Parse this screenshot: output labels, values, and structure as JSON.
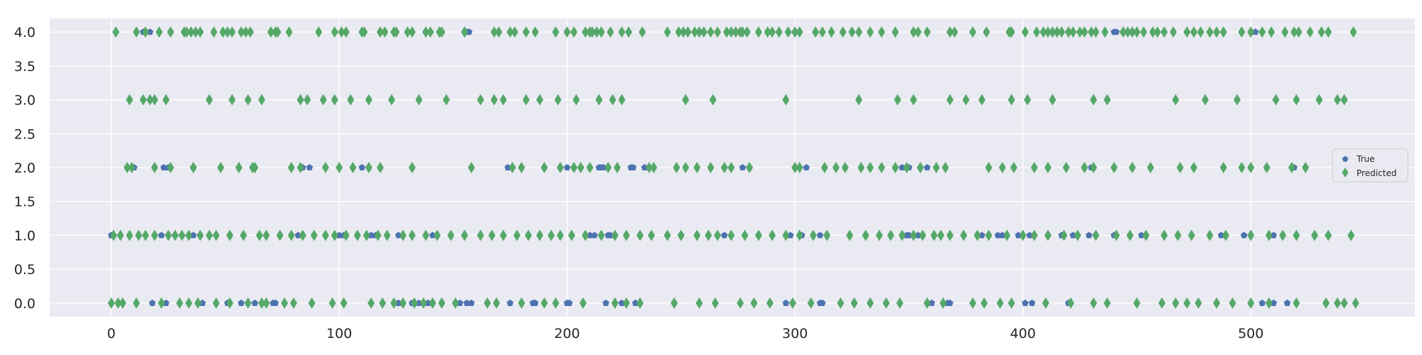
{
  "chart_data": {
    "type": "scatter",
    "title": "",
    "xlabel": "",
    "ylabel": "",
    "xlim": [
      -27,
      572
    ],
    "ylim": [
      -0.2,
      4.2
    ],
    "xticks": [
      0,
      100,
      200,
      300,
      400,
      500
    ],
    "yticks": [
      0.0,
      0.5,
      1.0,
      1.5,
      2.0,
      2.5,
      3.0,
      3.5,
      4.0
    ],
    "ytick_labels": [
      "0.0",
      "0.5",
      "1.0",
      "1.5",
      "2.0",
      "2.5",
      "3.0",
      "3.5",
      "4.0"
    ],
    "grid": true,
    "legend_position": "right",
    "colors": {
      "background": "#eaeaf2",
      "grid": "#ffffff",
      "true": "#4c72b0",
      "predicted": "#55a868"
    },
    "series": [
      {
        "name": "True",
        "marker": "pentagon",
        "points": {
          "4": [
            14,
            17,
            156,
            157,
            440,
            441,
            502
          ],
          "3": [],
          "2": [
            10,
            23,
            25,
            36,
            84,
            87,
            110,
            174,
            200,
            214,
            215,
            216,
            228,
            229,
            234,
            277,
            280,
            305,
            347,
            350,
            358,
            430,
            519
          ],
          "1": [
            0,
            22,
            36,
            82,
            100,
            102,
            114,
            116,
            126,
            141,
            210,
            212,
            218,
            219,
            250,
            269,
            298,
            303,
            311,
            349,
            350,
            354,
            382,
            389,
            391,
            398,
            403,
            417,
            422,
            429,
            440,
            452,
            487,
            497,
            510
          ],
          "0": [
            18,
            24,
            40,
            51,
            57,
            63,
            71,
            72,
            126,
            132,
            135,
            139,
            153,
            156,
            158,
            175,
            185,
            186,
            200,
            201,
            217,
            224,
            230,
            296,
            311,
            312,
            360,
            367,
            368,
            401,
            404,
            420,
            505,
            510,
            516
          ]
        }
      },
      {
        "name": "Predicted",
        "marker": "diamond",
        "points": {
          "4": [
            2,
            11,
            15,
            21,
            26,
            32,
            33,
            35,
            37,
            39,
            45,
            49,
            51,
            53,
            57,
            59,
            61,
            70,
            72,
            73,
            78,
            91,
            98,
            101,
            103,
            110,
            111,
            118,
            120,
            124,
            125,
            130,
            132,
            138,
            140,
            144,
            145,
            155,
            168,
            170,
            175,
            177,
            182,
            186,
            195,
            200,
            203,
            208,
            210,
            211,
            213,
            215,
            219,
            224,
            227,
            233,
            244,
            249,
            251,
            253,
            256,
            258,
            260,
            263,
            266,
            270,
            272,
            274,
            276,
            277,
            279,
            284,
            288,
            290,
            293,
            297,
            300,
            302,
            309,
            312,
            316,
            321,
            325,
            328,
            333,
            338,
            344,
            352,
            354,
            358,
            368,
            370,
            378,
            384,
            394,
            395,
            401,
            406,
            409,
            411,
            413,
            415,
            417,
            420,
            422,
            425,
            427,
            430,
            432,
            436,
            444,
            446,
            448,
            450,
            453,
            457,
            459,
            462,
            466,
            472,
            475,
            478,
            482,
            485,
            488,
            496,
            500,
            505,
            509,
            515,
            519,
            521,
            526,
            531,
            534,
            545
          ],
          "3": [
            8,
            14,
            17,
            19,
            24,
            43,
            53,
            60,
            66,
            83,
            86,
            93,
            98,
            105,
            113,
            123,
            135,
            147,
            162,
            168,
            172,
            182,
            188,
            196,
            204,
            214,
            220,
            224,
            252,
            264,
            296,
            328,
            345,
            352,
            368,
            375,
            382,
            395,
            402,
            413,
            431,
            437,
            467,
            480,
            494,
            511,
            520,
            530,
            538,
            541
          ],
          "2": [
            7,
            9,
            19,
            26,
            36,
            48,
            56,
            62,
            63,
            79,
            83,
            94,
            100,
            106,
            113,
            118,
            132,
            158,
            176,
            180,
            190,
            197,
            203,
            206,
            210,
            218,
            222,
            236,
            238,
            248,
            252,
            257,
            263,
            269,
            272,
            280,
            300,
            302,
            313,
            318,
            322,
            329,
            333,
            338,
            344,
            349,
            355,
            362,
            366,
            385,
            391,
            396,
            405,
            411,
            419,
            427,
            431,
            440,
            448,
            456,
            469,
            475,
            488,
            496,
            500,
            507,
            518,
            524
          ],
          "1": [
            1,
            4,
            8,
            12,
            15,
            19,
            25,
            28,
            31,
            34,
            39,
            43,
            46,
            52,
            58,
            65,
            68,
            74,
            79,
            84,
            89,
            94,
            98,
            103,
            108,
            112,
            117,
            121,
            128,
            132,
            138,
            143,
            149,
            155,
            162,
            167,
            172,
            178,
            183,
            188,
            193,
            197,
            202,
            208,
            215,
            221,
            226,
            232,
            237,
            244,
            250,
            257,
            262,
            266,
            272,
            278,
            284,
            290,
            296,
            302,
            308,
            314,
            324,
            331,
            337,
            342,
            347,
            352,
            356,
            361,
            364,
            368,
            374,
            380,
            385,
            393,
            400,
            405,
            411,
            418,
            424,
            432,
            441,
            447,
            454,
            462,
            468,
            474,
            482,
            489,
            500,
            508,
            514,
            520,
            528,
            534,
            544
          ],
          "0": [
            0,
            3,
            5,
            11,
            22,
            30,
            34,
            38,
            46,
            52,
            60,
            66,
            68,
            76,
            80,
            88,
            97,
            102,
            114,
            119,
            124,
            128,
            133,
            137,
            141,
            145,
            151,
            165,
            169,
            180,
            190,
            195,
            207,
            221,
            226,
            232,
            247,
            258,
            265,
            276,
            282,
            289,
            299,
            307,
            320,
            326,
            333,
            340,
            346,
            358,
            365,
            378,
            383,
            390,
            395,
            410,
            421,
            431,
            437,
            450,
            461,
            467,
            472,
            477,
            485,
            492,
            500,
            508,
            520,
            533,
            538,
            541,
            546
          ]
        }
      }
    ]
  }
}
